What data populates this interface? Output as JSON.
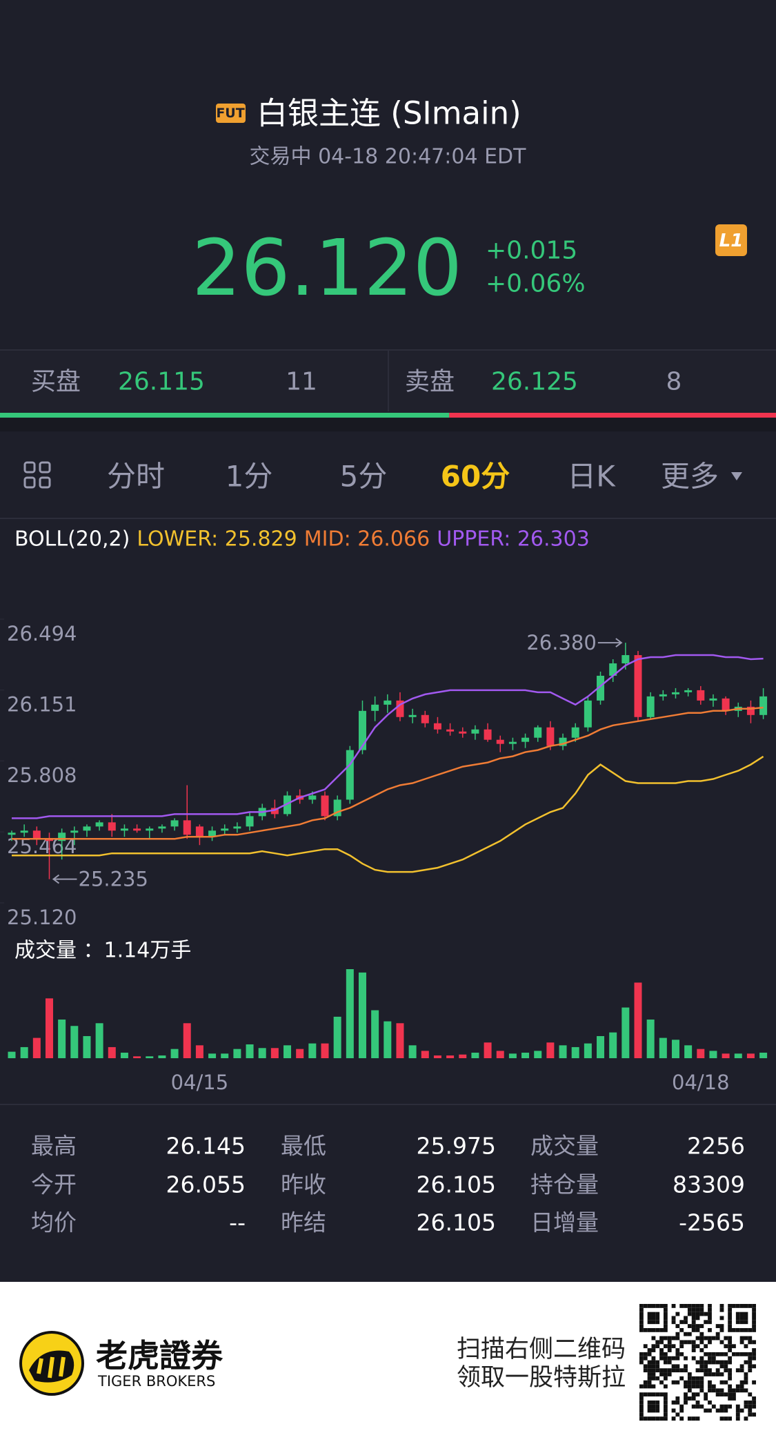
{
  "header": {
    "badge": "FUT",
    "title": "白银主连 (SImain)",
    "status": "交易中 04-18 20:47:04 EDT",
    "level": "L1"
  },
  "quote": {
    "price": "26.120",
    "change": "+0.015",
    "change_pct": "+0.06%"
  },
  "bid_ask": {
    "bid_label": "买盘",
    "bid_price": "26.115",
    "bid_size": 11,
    "ask_label": "卖盘",
    "ask_price": "26.125",
    "ask_size": 8,
    "bid_color": "#35c77a",
    "ask_color": "#f0344f"
  },
  "tabs": [
    {
      "label": "分时"
    },
    {
      "label": "1分"
    },
    {
      "label": "5分"
    },
    {
      "label": "60分",
      "active": true
    },
    {
      "label": "日K"
    },
    {
      "label": "更多"
    }
  ],
  "chart_data": {
    "type": "candlestick",
    "indicator": [
      {
        "label": "BOLL(20,2)",
        "color": "#ffffff"
      },
      {
        "label": "LOWER: 25.829",
        "color": "#f2c12e"
      },
      {
        "label": "MID: 26.066",
        "color": "#f07c35"
      },
      {
        "label": "UPPER: 26.303",
        "color": "#a259f0"
      }
    ],
    "categories": [
      null,
      null,
      null,
      null,
      null,
      null,
      null,
      null,
      null,
      null,
      null,
      null,
      null,
      null,
      null,
      "04/15",
      null,
      null,
      null,
      null,
      null,
      null,
      null,
      null,
      null,
      null,
      null,
      null,
      null,
      null,
      null,
      null,
      null,
      null,
      null,
      null,
      null,
      null,
      null,
      null,
      null,
      null,
      null,
      null,
      null,
      null,
      null,
      null,
      null,
      null,
      null,
      null,
      null,
      null,
      null,
      "04/18",
      null,
      null,
      null,
      null,
      null
    ],
    "ohlc": [
      [
        25.45,
        25.47,
        25.42,
        25.46
      ],
      [
        25.46,
        25.5,
        25.44,
        25.47
      ],
      [
        25.47,
        25.49,
        25.4,
        25.43
      ],
      [
        25.43,
        25.46,
        25.235,
        25.42
      ],
      [
        25.42,
        25.48,
        25.33,
        25.46
      ],
      [
        25.46,
        25.49,
        25.4,
        25.47
      ],
      [
        25.47,
        25.5,
        25.44,
        25.49
      ],
      [
        25.49,
        25.52,
        25.47,
        25.51
      ],
      [
        25.51,
        25.55,
        25.44,
        25.47
      ],
      [
        25.47,
        25.5,
        25.44,
        25.48
      ],
      [
        25.48,
        25.5,
        25.46,
        25.47
      ],
      [
        25.47,
        25.49,
        25.43,
        25.48
      ],
      [
        25.48,
        25.5,
        25.46,
        25.49
      ],
      [
        25.49,
        25.53,
        25.47,
        25.52
      ],
      [
        25.52,
        25.69,
        25.43,
        25.45
      ],
      [
        25.49,
        25.5,
        25.4,
        25.44
      ],
      [
        25.44,
        25.49,
        25.42,
        25.47
      ],
      [
        25.47,
        25.5,
        25.45,
        25.48
      ],
      [
        25.48,
        25.51,
        25.46,
        25.49
      ],
      [
        25.49,
        25.56,
        25.47,
        25.54
      ],
      [
        25.54,
        25.6,
        25.52,
        25.58
      ],
      [
        25.58,
        25.62,
        25.53,
        25.55
      ],
      [
        25.55,
        25.66,
        25.54,
        25.64
      ],
      [
        25.64,
        25.67,
        25.6,
        25.62
      ],
      [
        25.62,
        25.66,
        25.6,
        25.64
      ],
      [
        25.64,
        25.66,
        25.52,
        25.54
      ],
      [
        25.54,
        25.64,
        25.52,
        25.62
      ],
      [
        25.62,
        25.88,
        25.6,
        25.86
      ],
      [
        25.86,
        26.1,
        25.84,
        26.05
      ],
      [
        26.05,
        26.12,
        26.0,
        26.08
      ],
      [
        26.08,
        26.13,
        26.04,
        26.1
      ],
      [
        26.1,
        26.14,
        26.0,
        26.02
      ],
      [
        26.02,
        26.06,
        25.99,
        26.03
      ],
      [
        26.03,
        26.05,
        25.97,
        25.99
      ],
      [
        25.99,
        26.02,
        25.94,
        25.96
      ],
      [
        25.96,
        25.99,
        25.93,
        25.95
      ],
      [
        25.95,
        25.97,
        25.92,
        25.94
      ],
      [
        25.94,
        25.98,
        25.91,
        25.96
      ],
      [
        25.96,
        25.99,
        25.9,
        25.91
      ],
      [
        25.91,
        25.93,
        25.85,
        25.89
      ],
      [
        25.89,
        25.92,
        25.86,
        25.9
      ],
      [
        25.9,
        25.94,
        25.87,
        25.92
      ],
      [
        25.92,
        25.98,
        25.9,
        25.97
      ],
      [
        25.97,
        26.0,
        25.86,
        25.88
      ],
      [
        25.88,
        25.94,
        25.86,
        25.92
      ],
      [
        25.92,
        25.99,
        25.9,
        25.97
      ],
      [
        25.97,
        26.12,
        25.95,
        26.1
      ],
      [
        26.1,
        26.24,
        26.08,
        26.22
      ],
      [
        26.22,
        26.3,
        26.19,
        26.28
      ],
      [
        26.28,
        26.38,
        26.25,
        26.32
      ],
      [
        26.32,
        26.34,
        26.0,
        26.02
      ],
      [
        26.02,
        26.14,
        26.01,
        26.12
      ],
      [
        26.12,
        26.15,
        26.1,
        26.13
      ],
      [
        26.13,
        26.16,
        26.11,
        26.14
      ],
      [
        26.14,
        26.16,
        26.12,
        26.15
      ],
      [
        26.15,
        26.17,
        26.08,
        26.1
      ],
      [
        26.1,
        26.13,
        26.07,
        26.11
      ],
      [
        26.11,
        26.12,
        26.03,
        26.05
      ],
      [
        26.05,
        26.09,
        26.02,
        26.07
      ],
      [
        26.07,
        26.1,
        25.99,
        26.03
      ],
      [
        26.03,
        26.16,
        26.01,
        26.12
      ]
    ],
    "up_color": "#35c77a",
    "down_color": "#f0344f",
    "overlays": [
      {
        "color": "#a259f0",
        "values": [
          25.53,
          25.53,
          25.53,
          25.54,
          25.54,
          25.54,
          25.54,
          25.54,
          25.54,
          25.54,
          25.54,
          25.54,
          25.54,
          25.55,
          25.55,
          25.55,
          25.55,
          25.55,
          25.55,
          25.56,
          25.56,
          25.57,
          25.6,
          25.63,
          25.65,
          25.67,
          25.73,
          25.79,
          25.88,
          25.97,
          26.03,
          26.08,
          26.11,
          26.13,
          26.14,
          26.15,
          26.15,
          26.15,
          26.15,
          26.15,
          26.15,
          26.15,
          26.14,
          26.14,
          26.11,
          26.08,
          26.12,
          26.17,
          26.22,
          26.27,
          26.3,
          26.31,
          26.31,
          26.32,
          26.32,
          26.32,
          26.32,
          26.31,
          26.31,
          26.3,
          26.303
        ]
      },
      {
        "color": "#f07c35",
        "values": [
          25.43,
          25.43,
          25.43,
          25.43,
          25.43,
          25.43,
          25.43,
          25.43,
          25.43,
          25.43,
          25.43,
          25.43,
          25.43,
          25.43,
          25.44,
          25.44,
          25.44,
          25.45,
          25.45,
          25.46,
          25.47,
          25.48,
          25.49,
          25.5,
          25.52,
          25.53,
          25.56,
          25.58,
          25.61,
          25.64,
          25.67,
          25.69,
          25.7,
          25.72,
          25.74,
          25.76,
          25.78,
          25.79,
          25.8,
          25.82,
          25.83,
          25.85,
          25.86,
          25.88,
          25.89,
          25.91,
          25.93,
          25.96,
          25.98,
          25.99,
          26.0,
          26.01,
          26.02,
          26.03,
          26.04,
          26.04,
          26.05,
          26.05,
          26.06,
          26.06,
          26.066
        ]
      },
      {
        "color": "#f2c12e",
        "values": [
          25.35,
          25.35,
          25.35,
          25.35,
          25.35,
          25.35,
          25.35,
          25.35,
          25.36,
          25.36,
          25.36,
          25.36,
          25.36,
          25.36,
          25.36,
          25.36,
          25.36,
          25.36,
          25.36,
          25.36,
          25.37,
          25.36,
          25.35,
          25.36,
          25.37,
          25.38,
          25.38,
          25.35,
          25.31,
          25.28,
          25.27,
          25.27,
          25.27,
          25.28,
          25.29,
          25.31,
          25.33,
          25.36,
          25.39,
          25.42,
          25.46,
          25.5,
          25.53,
          25.56,
          25.58,
          25.65,
          25.74,
          25.79,
          25.75,
          25.71,
          25.7,
          25.7,
          25.7,
          25.7,
          25.71,
          25.71,
          25.72,
          25.74,
          25.76,
          25.79,
          25.829
        ]
      }
    ],
    "ylim": [
      25.12,
      26.494
    ],
    "yticks": [
      {
        "value": 25.12,
        "label": "25.120"
      },
      25.464,
      25.808,
      26.151,
      26.494
    ],
    "high_marker": {
      "value": 26.38,
      "label": "26.380"
    },
    "low_marker": 25.235,
    "volume_title": "成交量 ：1.14万手",
    "volume": [
      830,
      1420,
      2600,
      7660,
      4950,
      4130,
      2830,
      4480,
      1420,
      710,
      240,
      240,
      350,
      1180,
      4480,
      1650,
      590,
      590,
      1180,
      1770,
      1300,
      1300,
      1650,
      1180,
      1890,
      1890,
      5310,
      11400,
      10970,
      6140,
      4720,
      4480,
      1650,
      940,
      350,
      350,
      470,
      710,
      2010,
      940,
      590,
      710,
      940,
      2010,
      1650,
      1420,
      1890,
      2830,
      3300,
      6490,
      9680,
      4950,
      2600,
      2360,
      1650,
      1180,
      940,
      590,
      590,
      590,
      710
    ],
    "volume_ylim": [
      0,
      11400
    ]
  },
  "stats": {
    "rows": [
      [
        "最高",
        "26.145",
        "最低",
        "25.975",
        "成交量",
        "2256"
      ],
      [
        "今开",
        "26.055",
        "昨收",
        "26.105",
        "持仓量",
        "83309"
      ],
      [
        "均价",
        "--",
        "昨结",
        "26.105",
        "日增量",
        "-2565"
      ]
    ]
  },
  "footer": {
    "brand": "老虎證券",
    "brand_en": "TIGER BROKERS",
    "promo_line1": "扫描右侧二维码",
    "promo_line2": "领取一股特斯拉"
  }
}
